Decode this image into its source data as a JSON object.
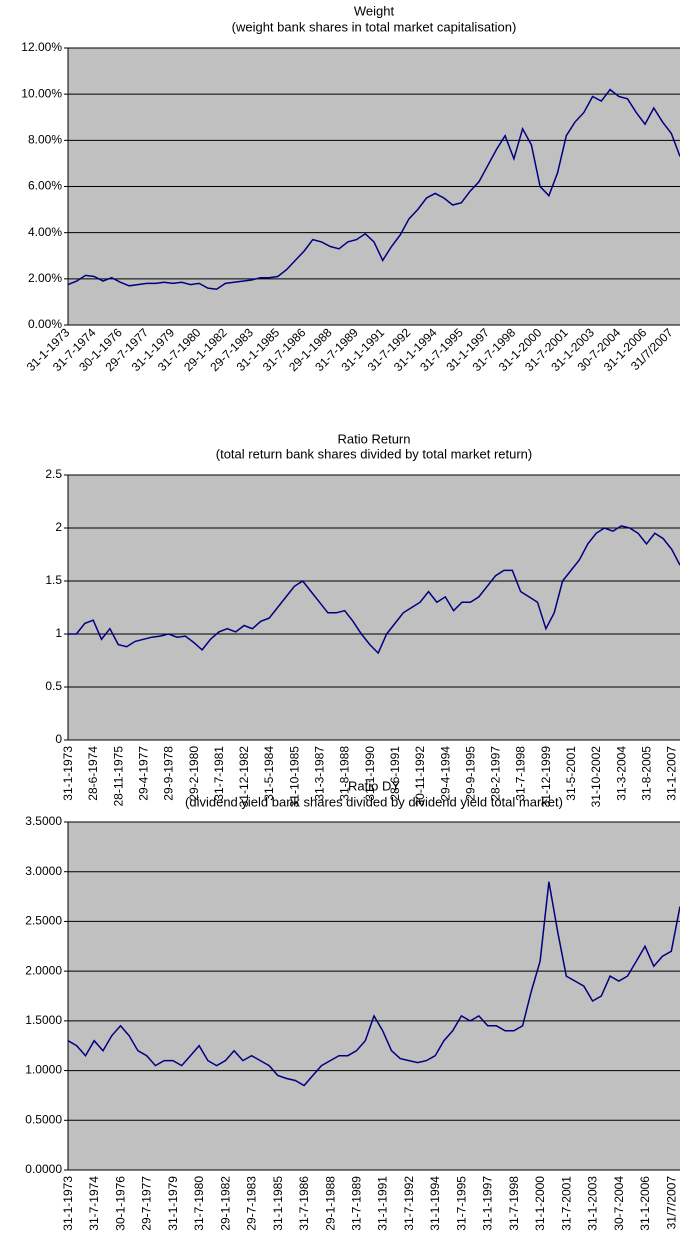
{
  "chart_data": [
    {
      "type": "line",
      "title": "Weight",
      "subtitle": "(weight bank shares in total market capitalisation)",
      "categories": [
        "31-1-1973",
        null,
        null,
        "31-7-1974",
        null,
        null,
        "30-1-1976",
        null,
        null,
        "29-7-1977",
        null,
        null,
        "31-1-1979",
        null,
        null,
        "31-7-1980",
        null,
        null,
        "29-1-1982",
        null,
        null,
        "29-7-1983",
        null,
        null,
        "31-1-1985",
        null,
        null,
        "31-7-1986",
        null,
        null,
        "29-1-1988",
        null,
        null,
        "31-7-1989",
        null,
        null,
        "31-1-1991",
        null,
        null,
        "31-7-1992",
        null,
        null,
        "31-1-1994",
        null,
        null,
        "31-7-1995",
        null,
        null,
        "31-1-1997",
        null,
        null,
        "31-7-1998",
        null,
        null,
        "31-1-2000",
        null,
        null,
        "31-7-2001",
        null,
        null,
        "31-1-2003",
        null,
        null,
        "30-7-2004",
        null,
        null,
        "31-1-2006",
        null,
        null,
        "31/7/2007",
        null
      ],
      "series": [
        {
          "color": "#000080",
          "values": [
            1.75,
            1.9,
            2.15,
            2.1,
            1.9,
            2.05,
            1.85,
            1.7,
            1.75,
            1.8,
            1.8,
            1.85,
            1.8,
            1.85,
            1.75,
            1.8,
            1.6,
            1.55,
            1.8,
            1.85,
            1.9,
            1.95,
            2.05,
            2.05,
            2.1,
            2.4,
            2.8,
            3.2,
            3.7,
            3.6,
            3.4,
            3.3,
            3.6,
            3.7,
            3.95,
            3.6,
            2.8,
            3.4,
            3.9,
            4.6,
            5.0,
            5.5,
            5.7,
            5.5,
            5.2,
            5.3,
            5.8,
            6.2,
            6.9,
            7.6,
            8.2,
            7.2,
            8.5,
            7.8,
            6.0,
            5.6,
            6.6,
            8.2,
            8.8,
            9.2,
            9.9,
            9.7,
            10.2,
            9.9,
            9.8,
            9.2,
            8.7,
            9.4,
            8.8,
            8.3,
            7.3
          ]
        }
      ],
      "ylim": [
        0,
        12
      ],
      "yticks": [
        {
          "value": 0,
          "label": "0.00%"
        },
        {
          "value": 2,
          "label": "2.00%"
        },
        {
          "value": 4,
          "label": "4.00%"
        },
        {
          "value": 6,
          "label": "6.00%"
        },
        {
          "value": 8,
          "label": "8.00%"
        },
        {
          "value": 10,
          "label": "10.00%"
        },
        {
          "value": 12,
          "label": "12.00%"
        }
      ],
      "grid": true
    },
    {
      "type": "line",
      "title": "Ratio Return",
      "subtitle": "(total return bank shares divided by total market return)",
      "categories": [
        "31-1-1973",
        null,
        null,
        "28-6-1974",
        null,
        null,
        "28-11-1975",
        null,
        null,
        "29-4-1977",
        null,
        null,
        "29-9-1978",
        null,
        null,
        "29-2-1980",
        null,
        null,
        "31-7-1981",
        null,
        null,
        "31-12-1982",
        null,
        null,
        "31-5-1984",
        null,
        null,
        "31-10-1985",
        null,
        null,
        "31-3-1987",
        null,
        null,
        "31-8-1988",
        null,
        null,
        "31-1-1990",
        null,
        null,
        "28-6-1991",
        null,
        null,
        "30-11-1992",
        null,
        null,
        "29-4-1994",
        null,
        null,
        "29-9-1995",
        null,
        null,
        "28-2-1997",
        null,
        null,
        "31-7-1998",
        null,
        null,
        "31-12-1999",
        null,
        null,
        "31-5-2001",
        null,
        null,
        "31-10-2002",
        null,
        null,
        "31-3-2004",
        null,
        null,
        "31-8-2005",
        null,
        null,
        "31-1-2007",
        null
      ],
      "series": [
        {
          "color": "#000080",
          "values": [
            1.0,
            1.0,
            1.1,
            1.13,
            0.95,
            1.05,
            0.9,
            0.88,
            0.93,
            0.95,
            0.97,
            0.98,
            1.0,
            0.97,
            0.98,
            0.92,
            0.85,
            0.95,
            1.02,
            1.05,
            1.02,
            1.08,
            1.05,
            1.12,
            1.15,
            1.25,
            1.35,
            1.45,
            1.5,
            1.4,
            1.3,
            1.2,
            1.2,
            1.22,
            1.12,
            1.0,
            0.9,
            0.82,
            1.0,
            1.1,
            1.2,
            1.25,
            1.3,
            1.4,
            1.3,
            1.35,
            1.22,
            1.3,
            1.3,
            1.35,
            1.45,
            1.55,
            1.6,
            1.6,
            1.4,
            1.35,
            1.3,
            1.05,
            1.2,
            1.5,
            1.6,
            1.7,
            1.85,
            1.95,
            2.0,
            1.97,
            2.02,
            2.0,
            1.95,
            1.85,
            1.95,
            1.9,
            1.8,
            1.65
          ]
        }
      ],
      "ylim": [
        0,
        2.5
      ],
      "yticks": [
        0,
        0.5,
        1,
        1.5,
        2,
        2.5
      ],
      "grid": true
    },
    {
      "type": "line",
      "title": "Ratio DY",
      "subtitle": "(dividend yield bank shares divided by dividend yield total market)",
      "categories": [
        "31-1-1973",
        null,
        null,
        "31-7-1974",
        null,
        null,
        "30-1-1976",
        null,
        null,
        "29-7-1977",
        null,
        null,
        "31-1-1979",
        null,
        null,
        "31-7-1980",
        null,
        null,
        "29-1-1982",
        null,
        null,
        "29-7-1983",
        null,
        null,
        "31-1-1985",
        null,
        null,
        "31-7-1986",
        null,
        null,
        "29-1-1988",
        null,
        null,
        "31-7-1989",
        null,
        null,
        "31-1-1991",
        null,
        null,
        "31-7-1992",
        null,
        null,
        "31-1-1994",
        null,
        null,
        "31-7-1995",
        null,
        null,
        "31-1-1997",
        null,
        null,
        "31-7-1998",
        null,
        null,
        "31-1-2000",
        null,
        null,
        "31-7-2001",
        null,
        null,
        "31-1-2003",
        null,
        null,
        "30-7-2004",
        null,
        null,
        "31-1-2006",
        null,
        null,
        "31/7/2007",
        null
      ],
      "series": [
        {
          "color": "#000080",
          "values": [
            1.3,
            1.25,
            1.15,
            1.3,
            1.2,
            1.35,
            1.45,
            1.35,
            1.2,
            1.15,
            1.05,
            1.1,
            1.1,
            1.05,
            1.15,
            1.25,
            1.1,
            1.05,
            1.1,
            1.2,
            1.1,
            1.15,
            1.1,
            1.05,
            0.95,
            0.92,
            0.9,
            0.85,
            0.95,
            1.05,
            1.1,
            1.15,
            1.15,
            1.2,
            1.3,
            1.55,
            1.4,
            1.2,
            1.12,
            1.1,
            1.08,
            1.1,
            1.15,
            1.3,
            1.4,
            1.55,
            1.5,
            1.55,
            1.45,
            1.45,
            1.4,
            1.4,
            1.45,
            1.8,
            2.1,
            2.9,
            2.4,
            1.95,
            1.9,
            1.85,
            1.7,
            1.75,
            1.95,
            1.9,
            1.95,
            2.1,
            2.25,
            2.05,
            2.15,
            2.2,
            2.65
          ]
        }
      ],
      "ylim": [
        0,
        3.5
      ],
      "yticks": [
        {
          "value": 0,
          "label": "0.0000"
        },
        {
          "value": 0.5,
          "label": "0.5000"
        },
        {
          "value": 1,
          "label": "1.0000"
        },
        {
          "value": 1.5,
          "label": "1.5000"
        },
        {
          "value": 2,
          "label": "2.0000"
        },
        {
          "value": 2.5,
          "label": "2.5000"
        },
        {
          "value": 3,
          "label": "3.0000"
        },
        {
          "value": 3.5,
          "label": "3.5000"
        }
      ],
      "grid": true
    }
  ]
}
